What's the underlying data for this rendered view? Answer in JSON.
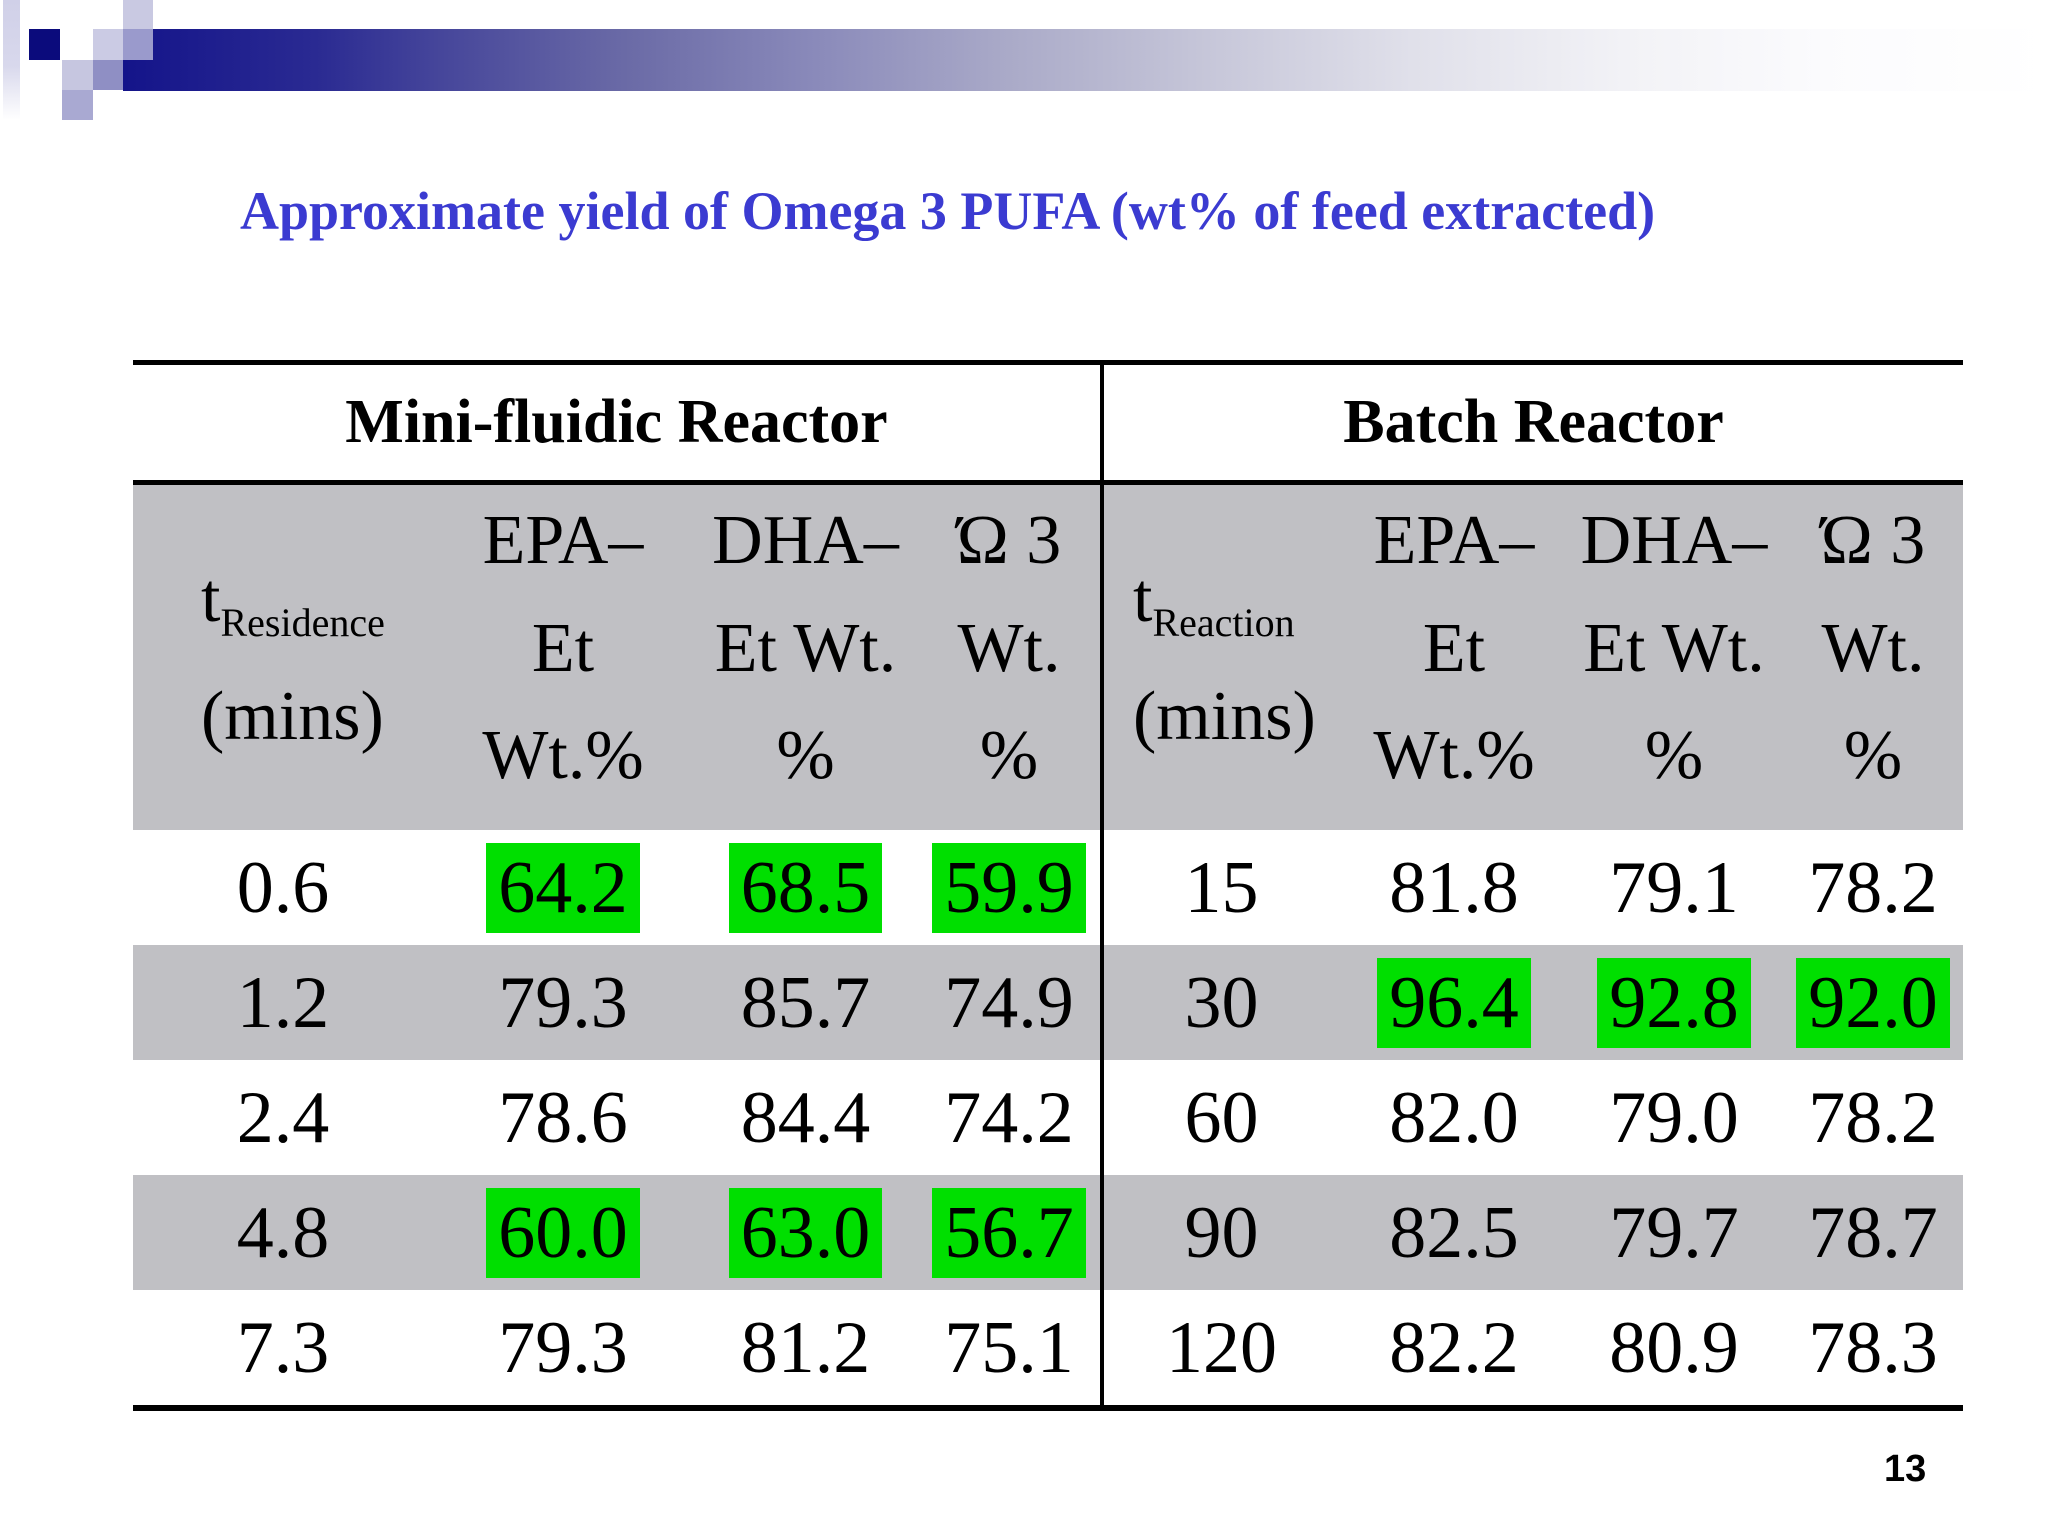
{
  "slide": {
    "title": "Approximate yield of Omega 3 PUFA (wt% of feed extracted)",
    "page_number": "13",
    "colors": {
      "title_blue": "#3B3BD1",
      "highlight_green": "#00DF00",
      "band_gray": "#C0C0C4",
      "banner_navy": "#14148A"
    }
  },
  "table": {
    "left": {
      "section_title": "Mini-fluidic Reactor",
      "time_header": {
        "symbol": "t",
        "subscript": "Residence",
        "unit": "(mins)"
      },
      "col_headers": [
        [
          "EPA–",
          "Et",
          "Wt.%"
        ],
        [
          "DHA–",
          "Et Wt.",
          "%"
        ],
        [
          "Ώ 3",
          "Wt.",
          "%"
        ]
      ],
      "rows": [
        {
          "t": "0.6",
          "shaded": false,
          "values": [
            {
              "v": "64.2",
              "hl": true
            },
            {
              "v": "68.5",
              "hl": true
            },
            {
              "v": "59.9",
              "hl": true
            }
          ]
        },
        {
          "t": "1.2",
          "shaded": true,
          "values": [
            {
              "v": "79.3",
              "hl": false
            },
            {
              "v": "85.7",
              "hl": false
            },
            {
              "v": "74.9",
              "hl": false
            }
          ]
        },
        {
          "t": "2.4",
          "shaded": false,
          "values": [
            {
              "v": "78.6",
              "hl": false
            },
            {
              "v": "84.4",
              "hl": false
            },
            {
              "v": "74.2",
              "hl": false
            }
          ]
        },
        {
          "t": "4.8",
          "shaded": true,
          "values": [
            {
              "v": "60.0",
              "hl": true
            },
            {
              "v": "63.0",
              "hl": true
            },
            {
              "v": "56.7",
              "hl": true
            }
          ]
        },
        {
          "t": "7.3",
          "shaded": false,
          "values": [
            {
              "v": "79.3",
              "hl": false
            },
            {
              "v": "81.2",
              "hl": false
            },
            {
              "v": "75.1",
              "hl": false
            }
          ]
        }
      ]
    },
    "right": {
      "section_title": "Batch Reactor",
      "time_header": {
        "symbol": "t",
        "subscript": "Reaction",
        "unit": "(mins)"
      },
      "col_headers": [
        [
          "EPA–",
          "Et",
          "Wt.%"
        ],
        [
          "DHA–",
          "Et Wt.",
          "%"
        ],
        [
          "Ώ 3",
          "Wt.",
          "%"
        ]
      ],
      "rows": [
        {
          "t": "15",
          "shaded": false,
          "values": [
            {
              "v": "81.8",
              "hl": false
            },
            {
              "v": "79.1",
              "hl": false
            },
            {
              "v": "78.2",
              "hl": false
            }
          ]
        },
        {
          "t": "30",
          "shaded": true,
          "values": [
            {
              "v": "96.4",
              "hl": true
            },
            {
              "v": "92.8",
              "hl": true
            },
            {
              "v": "92.0",
              "hl": true
            }
          ]
        },
        {
          "t": "60",
          "shaded": false,
          "values": [
            {
              "v": "82.0",
              "hl": false
            },
            {
              "v": "79.0",
              "hl": false
            },
            {
              "v": "78.2",
              "hl": false
            }
          ]
        },
        {
          "t": "90",
          "shaded": true,
          "values": [
            {
              "v": "82.5",
              "hl": false
            },
            {
              "v": "79.7",
              "hl": false
            },
            {
              "v": "78.7",
              "hl": false
            }
          ]
        },
        {
          "t": "120",
          "shaded": false,
          "values": [
            {
              "v": "82.2",
              "hl": false
            },
            {
              "v": "80.9",
              "hl": false
            },
            {
              "v": "78.3",
              "hl": false
            }
          ]
        }
      ]
    }
  }
}
